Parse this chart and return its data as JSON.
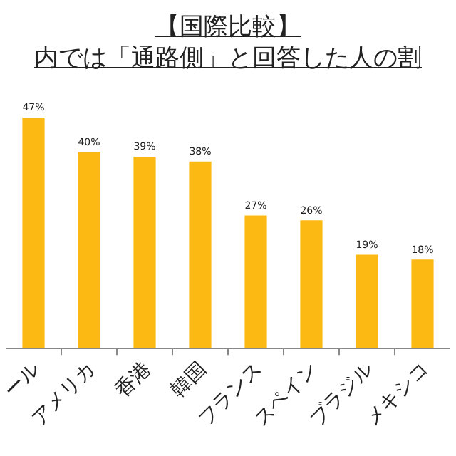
{
  "chart_data": {
    "type": "bar",
    "title": "【国際比較】",
    "subtitle": "内では「通路側」と回答した人の割",
    "categories": [
      "ール",
      "アメリカ",
      "香港",
      "韓国",
      "フランス",
      "スペイン",
      "ブラジル",
      "メキシコ"
    ],
    "values": [
      47,
      40,
      39,
      38,
      27,
      26,
      19,
      18
    ],
    "value_labels": [
      "47%",
      "40%",
      "39%",
      "38%",
      "27%",
      "26%",
      "19%",
      "18%"
    ],
    "color": "#fdb913"
  }
}
